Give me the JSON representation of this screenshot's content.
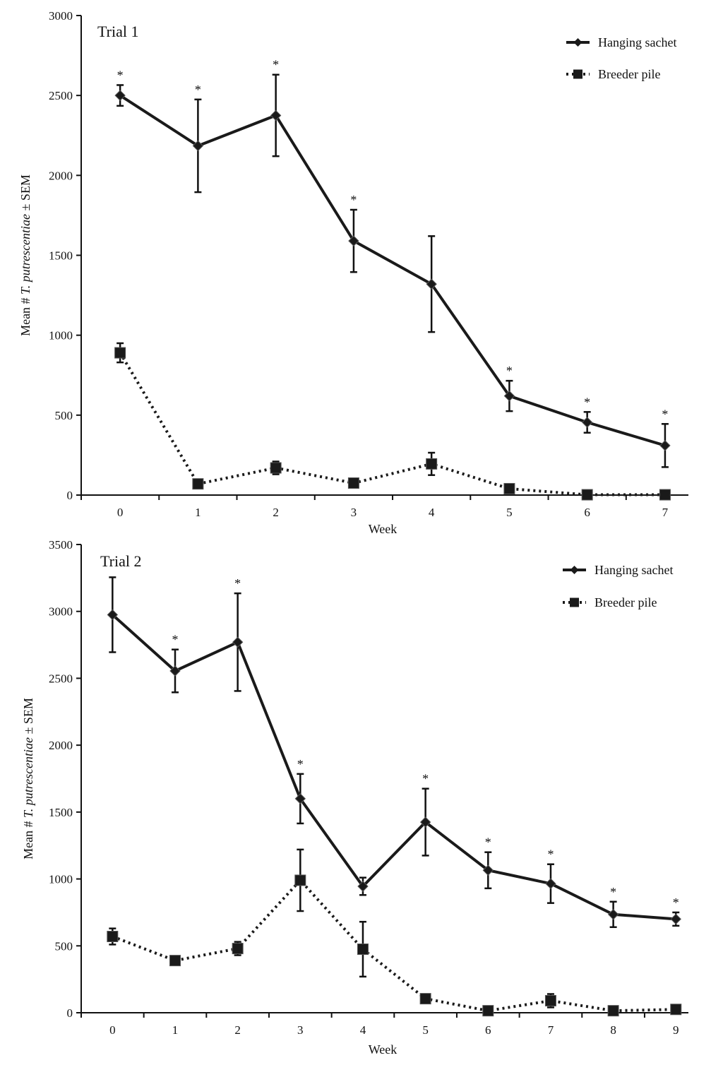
{
  "chart_data": [
    {
      "type": "line",
      "title": "Trial 1",
      "xlabel": "Week",
      "ylabel": "Mean # T. putrescentiae ± SEM",
      "ylabel_prefix": "Mean # ",
      "ylabel_italic": "T. putrescentiae",
      "ylabel_suffix": " ± SEM",
      "x": [
        0,
        1,
        2,
        3,
        4,
        5,
        6,
        7
      ],
      "xlim": [
        -0.5,
        7.3
      ],
      "ylim": [
        0,
        3000
      ],
      "yticks": [
        0,
        500,
        1000,
        1500,
        2000,
        2500,
        3000
      ],
      "legend_position": "top-right",
      "series": [
        {
          "name": "Hanging sachet",
          "style": "solid",
          "marker": "diamond",
          "values": [
            2500,
            2185,
            2375,
            1590,
            1320,
            620,
            455,
            310
          ],
          "errors": [
            65,
            290,
            255,
            195,
            300,
            95,
            65,
            135
          ],
          "significant": [
            true,
            true,
            true,
            true,
            false,
            true,
            true,
            true
          ]
        },
        {
          "name": "Breeder pile",
          "style": "dotted",
          "marker": "square",
          "values": [
            890,
            70,
            170,
            75,
            195,
            40,
            2,
            2
          ],
          "errors": [
            60,
            15,
            40,
            15,
            70,
            10,
            2,
            2
          ]
        }
      ],
      "significance_symbol": "*"
    },
    {
      "type": "line",
      "title": "Trial 2",
      "xlabel": "Week",
      "ylabel": "Mean # T. putrescentiae ± SEM",
      "ylabel_prefix": "Mean # ",
      "ylabel_italic": "T. putrescentiae",
      "ylabel_suffix": " ± SEM",
      "x": [
        0,
        1,
        2,
        3,
        4,
        5,
        6,
        7,
        8,
        9
      ],
      "xlim": [
        -0.5,
        9.2
      ],
      "ylim": [
        0,
        3500
      ],
      "yticks": [
        0,
        500,
        1000,
        1500,
        2000,
        2500,
        3000,
        3500
      ],
      "legend_position": "top-right",
      "series": [
        {
          "name": "Hanging sachet",
          "style": "solid",
          "marker": "diamond",
          "values": [
            2975,
            2555,
            2770,
            1600,
            945,
            1425,
            1065,
            965,
            735,
            700
          ],
          "errors": [
            280,
            160,
            365,
            185,
            65,
            250,
            135,
            145,
            95,
            50
          ],
          "significant": [
            false,
            true,
            true,
            true,
            false,
            true,
            true,
            true,
            true,
            true
          ]
        },
        {
          "name": "Breeder pile",
          "style": "dotted",
          "marker": "square",
          "values": [
            570,
            390,
            480,
            990,
            475,
            105,
            15,
            90,
            15,
            25
          ],
          "errors": [
            60,
            30,
            50,
            230,
            205,
            15,
            10,
            50,
            10,
            10
          ]
        }
      ],
      "significance_symbol": "*"
    }
  ]
}
